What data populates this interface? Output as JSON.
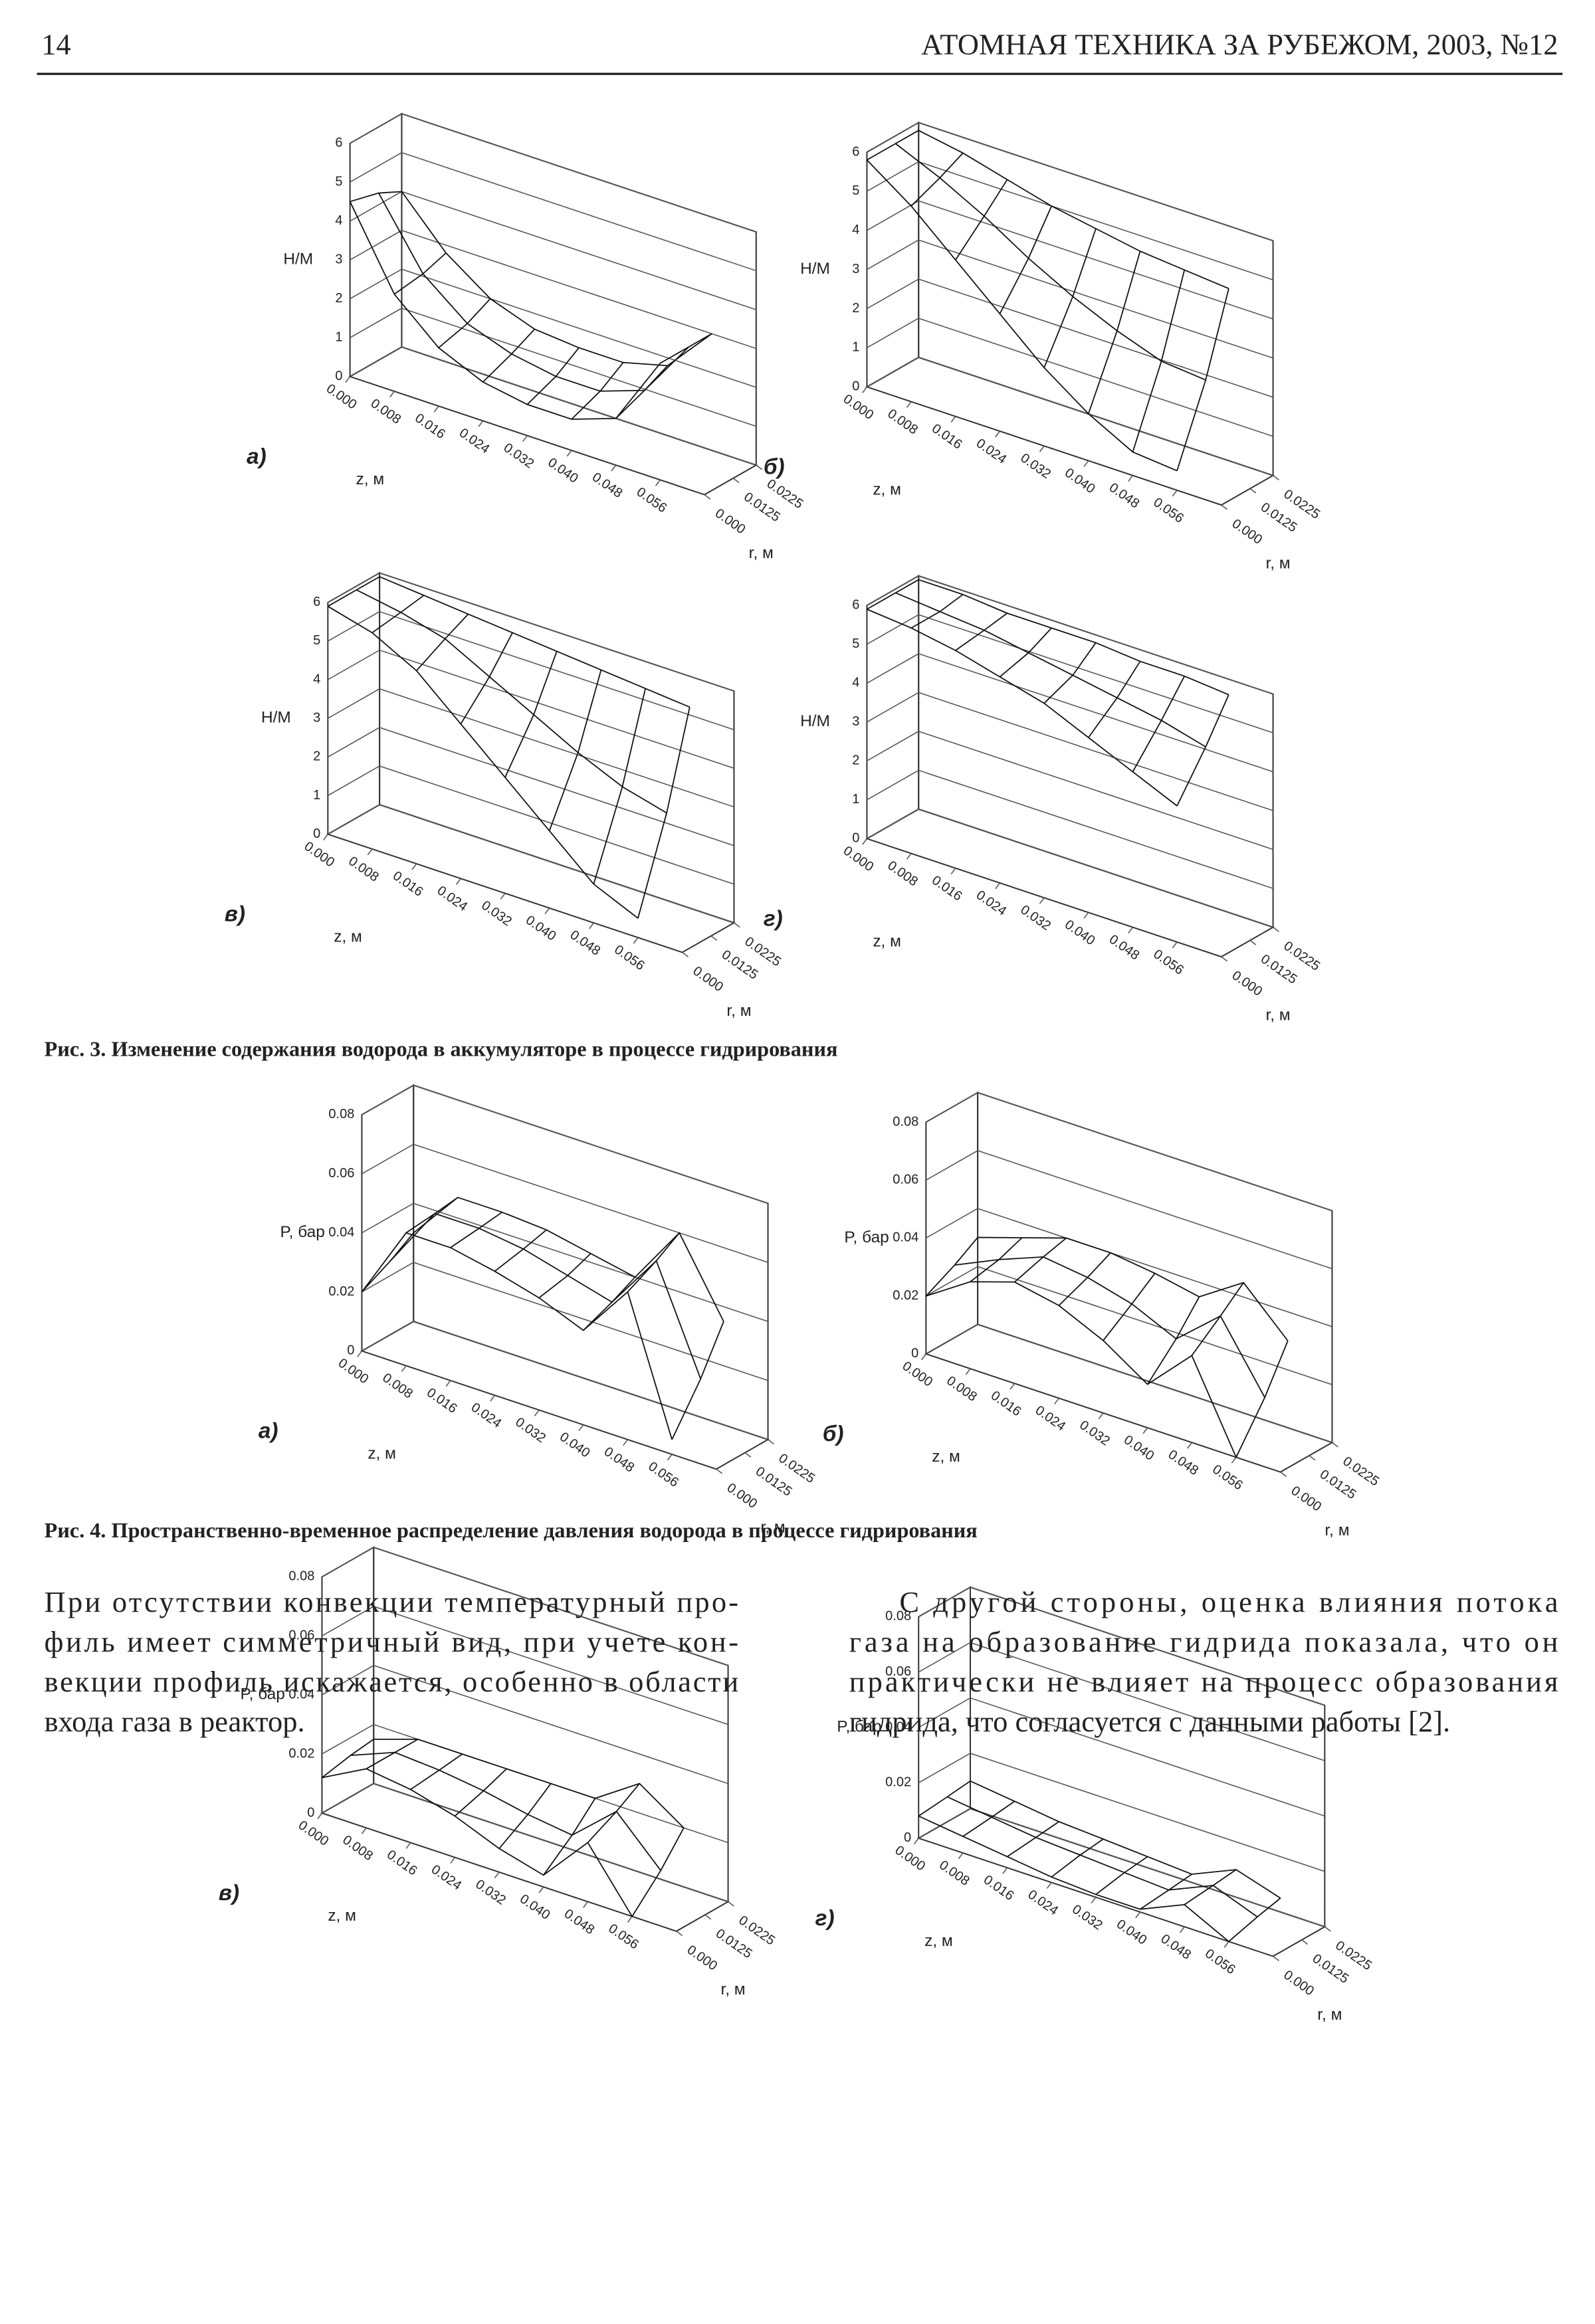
{
  "header": {
    "page": "14",
    "journal": "АТОМНАЯ ТЕХНИКА ЗА РУБЕЖОМ, 2003, №12"
  },
  "figures": [
    {
      "caption": "Рис. 3. Изменение содержания водорода в аккумуляторе в процессе гидрирования",
      "panels": [
        {
          "type": "surface3d",
          "label": "а)",
          "y_label": "H/M",
          "z_label": "z, м",
          "r_label": "r, м",
          "ylim": [
            0,
            6
          ],
          "yticks": [
            0,
            1,
            2,
            3,
            4,
            5,
            6
          ],
          "zlim": [
            0,
            0.064
          ],
          "zticks": [
            {
              "value": 0,
              "label": "0.000"
            },
            0.008,
            0.016,
            0.024,
            0.032,
            {
              "value": 0.04,
              "label": "0.040"
            },
            0.048,
            0.056
          ],
          "rlim": [
            0,
            0.0225
          ],
          "rticks": [
            {
              "value": 0,
              "label": "0.000"
            },
            0.0125,
            0.0225
          ],
          "surface": [
            [
              4.5,
              2.5,
              1.5,
              1.0,
              0.8,
              0.8,
              1.2,
              3.0
            ],
            [
              4.3,
              2.6,
              1.7,
              1.3,
              1.1,
              1.1,
              1.5,
              3.0
            ],
            [
              4.0,
              2.8,
              2.0,
              1.6,
              1.5,
              1.5,
              1.8,
              3.0
            ]
          ]
        },
        {
          "type": "surface3d",
          "label": "б)",
          "y_label": "H/M",
          "z_label": "z, м",
          "r_label": "r, м",
          "ylim": [
            0,
            6
          ],
          "yticks": [
            0,
            1,
            2,
            3,
            4,
            5,
            6
          ],
          "zlim": [
            0,
            0.064
          ],
          "zticks": [
            {
              "value": 0,
              "label": "0.000"
            },
            0.008,
            0.016,
            0.024,
            0.032,
            {
              "value": 0.04,
              "label": "0.040"
            },
            0.048,
            0.056
          ],
          "rlim": [
            0,
            0.0225
          ],
          "rticks": [
            {
              "value": 0,
              "label": "0.000"
            },
            0.0125,
            0.0225
          ],
          "surface": [
            [
              5.8,
              5.0,
              4.0,
              3.0,
              2.0,
              1.2,
              0.6,
              0.5
            ],
            [
              5.8,
              5.3,
              4.7,
              4.0,
              3.4,
              2.9,
              2.5,
              2.4
            ],
            [
              5.8,
              5.6,
              5.3,
              5.0,
              4.8,
              4.6,
              4.5,
              4.4
            ]
          ]
        },
        {
          "type": "surface3d",
          "label": "в)",
          "y_label": "H/M",
          "z_label": "z, м",
          "r_label": "r, м",
          "ylim": [
            0,
            6
          ],
          "yticks": [
            0,
            1,
            2,
            3,
            4,
            5,
            6
          ],
          "zlim": [
            0,
            0.064
          ],
          "zticks": [
            {
              "value": 0,
              "label": "0.000"
            },
            0.008,
            0.016,
            0.024,
            0.032,
            {
              "value": 0.04,
              "label": "0.040"
            },
            0.048,
            0.056
          ],
          "rlim": [
            0,
            0.0225
          ],
          "rticks": [
            {
              "value": 0,
              "label": "0.000"
            },
            0.0125,
            0.0225
          ],
          "surface": [
            [
              5.9,
              5.6,
              5.0,
              4.0,
              3.0,
              2.0,
              1.0,
              0.5
            ],
            [
              5.9,
              5.7,
              5.4,
              4.8,
              4.2,
              3.6,
              3.1,
              2.8
            ],
            [
              5.9,
              5.8,
              5.7,
              5.6,
              5.5,
              5.4,
              5.3,
              5.2
            ]
          ]
        },
        {
          "type": "surface3d",
          "label": "г)",
          "y_label": "H/M",
          "z_label": "z, м",
          "r_label": "r, м",
          "ylim": [
            0,
            6
          ],
          "yticks": [
            0,
            1,
            2,
            3,
            4,
            5,
            6
          ],
          "zlim": [
            0,
            0.064
          ],
          "zticks": [
            {
              "value": 0,
              "label": "0.000"
            },
            0.008,
            0.016,
            0.024,
            0.032,
            {
              "value": 0.04,
              "label": "0.040"
            },
            0.048,
            0.056
          ],
          "rlim": [
            0,
            0.0225
          ],
          "rticks": [
            {
              "value": 0,
              "label": "0.000"
            },
            0.0125,
            0.0225
          ],
          "surface": [
            [
              5.9,
              5.8,
              5.6,
              5.3,
              5.0,
              4.5,
              4.0,
              3.5
            ],
            [
              5.9,
              5.8,
              5.7,
              5.5,
              5.3,
              5.1,
              4.9,
              4.6
            ],
            [
              5.9,
              5.9,
              5.8,
              5.8,
              5.8,
              5.7,
              5.7,
              5.6
            ]
          ]
        }
      ]
    },
    {
      "caption": "Рис. 4. Пространственно-временное распределение давления водорода в процессе гидрирования",
      "panels": [
        {
          "type": "surface3d",
          "label": "а)",
          "y_label": "P, бар",
          "z_label": "z, м",
          "r_label": "r, м",
          "ylim": [
            0,
            0.08
          ],
          "yticks": [
            0,
            0.02,
            0.04,
            0.06,
            0.08
          ],
          "zlim": [
            0,
            0.064
          ],
          "zticks": [
            {
              "value": 0,
              "label": "0.000"
            },
            0.008,
            0.016,
            0.024,
            0.032,
            {
              "value": 0.04,
              "label": "0.040"
            },
            0.048,
            0.056
          ],
          "rlim": [
            0,
            0.0225
          ],
          "rticks": [
            {
              "value": 0,
              "label": "0.000"
            },
            0.0125,
            0.0225
          ],
          "surface": [
            [
              0.02,
              0.045,
              0.045,
              0.042,
              0.038,
              0.032,
              0.05,
              0.005
            ],
            [
              0.025,
              0.046,
              0.046,
              0.044,
              0.04,
              0.036,
              0.055,
              0.02
            ],
            [
              0.03,
              0.047,
              0.047,
              0.046,
              0.043,
              0.04,
              0.06,
              0.035
            ]
          ]
        },
        {
          "type": "surface3d",
          "label": "б)",
          "y_label": "P, бар",
          "z_label": "z, м",
          "r_label": "r, м",
          "ylim": [
            0,
            0.08
          ],
          "yticks": [
            0,
            0.02,
            0.04,
            0.06,
            0.08
          ],
          "zlim": [
            0,
            0.064
          ],
          "zticks": [
            {
              "value": 0,
              "label": "0.000"
            },
            0.008,
            0.016,
            0.024,
            0.032,
            {
              "value": 0.04,
              "label": "0.040"
            },
            0.048,
            0.056
          ],
          "rlim": [
            0,
            0.0225
          ],
          "rticks": [
            {
              "value": 0,
              "label": "0.000"
            },
            0.0125,
            0.0225
          ],
          "surface": [
            [
              0.02,
              0.03,
              0.035,
              0.032,
              0.025,
              0.015,
              0.03,
              0.0
            ],
            [
              0.025,
              0.032,
              0.038,
              0.036,
              0.032,
              0.025,
              0.038,
              0.015
            ],
            [
              0.03,
              0.035,
              0.04,
              0.04,
              0.038,
              0.035,
              0.045,
              0.03
            ]
          ]
        },
        {
          "type": "surface3d",
          "label": "в)",
          "y_label": "P, бар",
          "z_label": "z, м",
          "r_label": "r, м",
          "ylim": [
            0,
            0.08
          ],
          "yticks": [
            0,
            0.02,
            0.04,
            0.06,
            0.08
          ],
          "zlim": [
            0,
            0.064
          ],
          "zticks": [
            {
              "value": 0,
              "label": "0.000"
            },
            0.008,
            0.016,
            0.024,
            0.032,
            {
              "value": 0.04,
              "label": "0.040"
            },
            0.048,
            0.056
          ],
          "rlim": [
            0,
            0.0225
          ],
          "rticks": [
            {
              "value": 0,
              "label": "0.000"
            },
            0.0125,
            0.0225
          ],
          "surface": [
            [
              0.012,
              0.02,
              0.018,
              0.014,
              0.008,
              0.004,
              0.02,
              0.0
            ],
            [
              0.014,
              0.02,
              0.019,
              0.017,
              0.014,
              0.012,
              0.025,
              0.01
            ],
            [
              0.015,
              0.02,
              0.02,
              0.02,
              0.02,
              0.02,
              0.03,
              0.02
            ]
          ]
        },
        {
          "type": "surface3d",
          "label": "г)",
          "y_label": "P, бар",
          "z_label": "z, м",
          "r_label": "r, м",
          "ylim": [
            0,
            0.08
          ],
          "yticks": [
            0,
            0.02,
            0.04,
            0.06,
            0.08
          ],
          "zlim": [
            0,
            0.064
          ],
          "zticks": [
            {
              "value": 0,
              "label": "0.000"
            },
            0.008,
            0.016,
            0.024,
            0.032,
            {
              "value": 0.04,
              "label": "0.040"
            },
            0.048,
            0.056
          ],
          "rlim": [
            0,
            0.0225
          ],
          "rticks": [
            {
              "value": 0,
              "label": "0.000"
            },
            0.0125,
            0.0225
          ],
          "surface": [
            [
              0.008,
              0.006,
              0.004,
              0.002,
              0.001,
              0.001,
              0.008,
              0.0
            ],
            [
              0.009,
              0.007,
              0.005,
              0.004,
              0.003,
              0.002,
              0.009,
              0.003
            ],
            [
              0.01,
              0.008,
              0.006,
              0.005,
              0.004,
              0.003,
              0.01,
              0.005
            ]
          ]
        }
      ]
    }
  ],
  "body": {
    "left": [
      "При отсутствии конвекции температурный про-",
      "филь имеет симметричный вид, при учете кон-",
      "векции профиль искажается, особенно в области",
      "входа газа в реактор."
    ],
    "right": [
      "С другой стороны, оценка влияния потока",
      "газа на образование гидрида показала, что он",
      "практически не влияет на процесс образования",
      "гидрида, что согласуется с данными работы [2]."
    ]
  }
}
